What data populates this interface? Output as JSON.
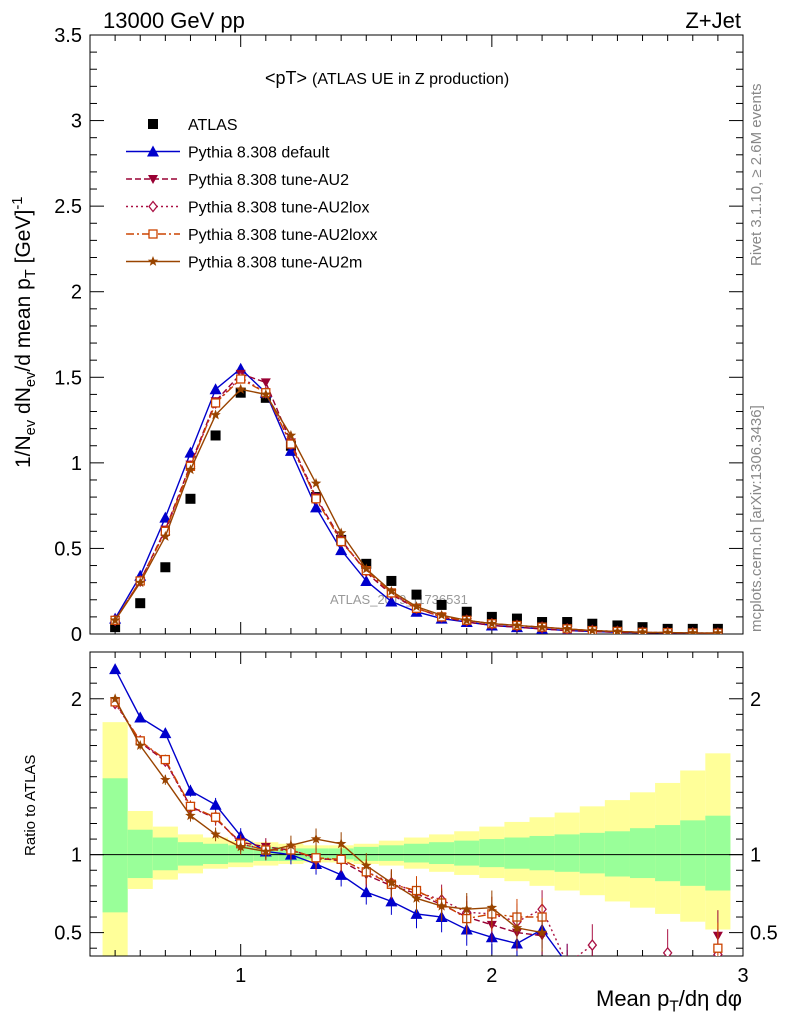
{
  "header": {
    "left": "13000 GeV pp",
    "right": "Z+Jet",
    "title_main": "<pT>",
    "title_sub": "(ATLAS UE in Z production)",
    "side_rivet": "Rivet 3.1.10, ≥ 2.6M events",
    "side_mcplots": "mcplots.cern.ch [arXiv:1306.3436]",
    "watermark": "ATLAS_2019_I1736531"
  },
  "axes": {
    "ylabel_top": "1/N_ev dN_ev/d mean p_T [GeV]^-1",
    "ylabel_bottom": "Ratio to ATLAS",
    "xlabel": "Mean p_T/dη dφ"
  },
  "chart_data": [
    {
      "type": "scatter",
      "panel": "main",
      "xlim": [
        0.4,
        3.0
      ],
      "ylim": [
        0,
        3.5
      ],
      "x_ticks": [
        1,
        2,
        3
      ],
      "y_ticks": [
        0,
        0.5,
        1,
        1.5,
        2,
        2.5,
        3,
        3.5
      ],
      "y_tick_labels": [
        "0",
        "0.5",
        "1",
        "1.5",
        "2",
        "2.5",
        "3",
        "3.5"
      ],
      "legend_position": "top-left",
      "x": [
        0.5,
        0.6,
        0.7,
        0.8,
        0.9,
        1.0,
        1.1,
        1.2,
        1.3,
        1.4,
        1.5,
        1.6,
        1.7,
        1.8,
        1.9,
        2.0,
        2.1,
        2.2,
        2.3,
        2.4,
        2.5,
        2.6,
        2.7,
        2.8,
        2.9
      ],
      "series": [
        {
          "name": "ATLAS",
          "color": "#000000",
          "marker": "square",
          "line": "none",
          "values": [
            0.04,
            0.18,
            0.39,
            0.79,
            1.16,
            1.41,
            1.38,
            1.1,
            0.8,
            0.55,
            0.41,
            0.31,
            0.23,
            0.17,
            0.13,
            0.1,
            0.09,
            0.07,
            0.07,
            0.06,
            0.05,
            0.04,
            0.03,
            0.03,
            0.03
          ]
        },
        {
          "name": "Pythia 8.308 default",
          "color": "#0000cc",
          "marker": "triangle-up",
          "line": "solid",
          "values": [
            0.09,
            0.34,
            0.68,
            1.06,
            1.43,
            1.55,
            1.41,
            1.07,
            0.74,
            0.49,
            0.31,
            0.19,
            0.13,
            0.09,
            0.07,
            0.05,
            0.04,
            0.03,
            0.02,
            0.015,
            0.01,
            0.008,
            0.006,
            0.005,
            0.004
          ]
        },
        {
          "name": "Pythia 8.308 tune-AU2",
          "color": "#990033",
          "marker": "triangle-down",
          "line": "dashed",
          "values": [
            0.08,
            0.31,
            0.61,
            0.99,
            1.36,
            1.52,
            1.47,
            1.12,
            0.8,
            0.55,
            0.36,
            0.23,
            0.15,
            0.1,
            0.07,
            0.05,
            0.04,
            0.03,
            0.02,
            0.015,
            0.01,
            0.008,
            0.006,
            0.005,
            0.004
          ]
        },
        {
          "name": "Pythia 8.308 tune-AU2lox",
          "color": "#aa1144",
          "marker": "diamond-open",
          "line": "dotted",
          "values": [
            0.08,
            0.31,
            0.6,
            0.98,
            1.35,
            1.5,
            1.41,
            1.11,
            0.79,
            0.54,
            0.37,
            0.24,
            0.15,
            0.1,
            0.08,
            0.06,
            0.05,
            0.04,
            0.03,
            0.02,
            0.015,
            0.01,
            0.008,
            0.006,
            0.005
          ]
        },
        {
          "name": "Pythia 8.308 tune-AU2loxx",
          "color": "#cc4400",
          "marker": "square-open",
          "line": "dashdot",
          "values": [
            0.08,
            0.31,
            0.6,
            0.98,
            1.35,
            1.49,
            1.41,
            1.11,
            0.79,
            0.54,
            0.37,
            0.24,
            0.15,
            0.1,
            0.08,
            0.06,
            0.05,
            0.04,
            0.03,
            0.02,
            0.015,
            0.01,
            0.008,
            0.006,
            0.005
          ]
        },
        {
          "name": "Pythia 8.308 tune-AU2m",
          "color": "#994400",
          "marker": "star",
          "line": "solid",
          "values": [
            0.08,
            0.3,
            0.57,
            0.96,
            1.28,
            1.43,
            1.4,
            1.16,
            0.88,
            0.59,
            0.38,
            0.25,
            0.16,
            0.11,
            0.08,
            0.06,
            0.05,
            0.04,
            0.03,
            0.02,
            0.015,
            0.01,
            0.008,
            0.006,
            0.005
          ]
        }
      ]
    },
    {
      "type": "line",
      "panel": "ratio",
      "xlim": [
        0.4,
        3.0
      ],
      "ylim": [
        0.35,
        2.3
      ],
      "x_ticks": [
        1,
        2,
        3
      ],
      "x_tick_labels": [
        "1",
        "2",
        "3"
      ],
      "y_ticks": [
        0.5,
        1,
        2
      ],
      "y_tick_labels": [
        "0.5",
        "1",
        "2"
      ],
      "bin_edges": [
        0.45,
        0.55,
        0.65,
        0.75,
        0.85,
        0.95,
        1.05,
        1.15,
        1.25,
        1.35,
        1.45,
        1.55,
        1.65,
        1.75,
        1.85,
        1.95,
        2.05,
        2.15,
        2.25,
        2.35,
        2.45,
        2.55,
        2.65,
        2.75,
        2.85,
        2.95
      ],
      "bands": {
        "green_low": [
          0.63,
          0.85,
          0.9,
          0.93,
          0.94,
          0.95,
          0.96,
          0.96,
          0.97,
          0.97,
          0.96,
          0.96,
          0.95,
          0.94,
          0.93,
          0.92,
          0.91,
          0.9,
          0.89,
          0.88,
          0.86,
          0.85,
          0.83,
          0.8,
          0.77
        ],
        "green_high": [
          1.49,
          1.16,
          1.11,
          1.08,
          1.07,
          1.06,
          1.05,
          1.04,
          1.04,
          1.04,
          1.05,
          1.06,
          1.07,
          1.08,
          1.09,
          1.1,
          1.11,
          1.12,
          1.13,
          1.14,
          1.15,
          1.17,
          1.19,
          1.22,
          1.25
        ],
        "yellow_low": [
          0.35,
          0.78,
          0.84,
          0.88,
          0.91,
          0.92,
          0.93,
          0.94,
          0.95,
          0.95,
          0.94,
          0.93,
          0.91,
          0.89,
          0.87,
          0.85,
          0.83,
          0.8,
          0.77,
          0.74,
          0.7,
          0.66,
          0.62,
          0.57,
          0.52
        ],
        "yellow_high": [
          1.85,
          1.28,
          1.18,
          1.13,
          1.11,
          1.09,
          1.08,
          1.07,
          1.06,
          1.06,
          1.07,
          1.09,
          1.11,
          1.13,
          1.15,
          1.18,
          1.21,
          1.24,
          1.27,
          1.31,
          1.35,
          1.4,
          1.46,
          1.54,
          1.65
        ]
      },
      "x": [
        0.5,
        0.6,
        0.7,
        0.8,
        0.9,
        1.0,
        1.1,
        1.2,
        1.3,
        1.4,
        1.5,
        1.6,
        1.7,
        1.8,
        1.9,
        2.0,
        2.1,
        2.2,
        2.3,
        2.4,
        2.5,
        2.6,
        2.7,
        2.8,
        2.9
      ],
      "series": [
        {
          "name": "Pythia 8.308 default",
          "color": "#0000cc",
          "marker": "triangle-up",
          "line": "solid",
          "values": [
            2.19,
            1.88,
            1.78,
            1.41,
            1.32,
            1.12,
            1.02,
            1.0,
            0.94,
            0.87,
            0.76,
            0.7,
            0.62,
            0.6,
            0.52,
            0.47,
            0.43,
            0.52,
            0.3,
            null,
            null,
            null,
            null,
            null,
            0.33
          ]
        },
        {
          "name": "Pythia 8.308 tune-AU2",
          "color": "#990033",
          "marker": "triangle-down",
          "line": "dashed",
          "values": [
            1.98,
            1.72,
            1.6,
            1.31,
            1.23,
            1.08,
            1.05,
            1.03,
            0.98,
            0.96,
            0.87,
            0.8,
            0.75,
            0.68,
            0.6,
            0.55,
            0.5,
            0.48,
            null,
            null,
            null,
            null,
            null,
            null,
            0.48
          ]
        },
        {
          "name": "Pythia 8.308 tune-AU2lox",
          "color": "#aa1144",
          "marker": "diamond-open",
          "line": "dotted",
          "values": [
            1.97,
            1.73,
            1.6,
            1.3,
            1.24,
            1.07,
            1.03,
            1.03,
            0.97,
            0.97,
            0.89,
            0.82,
            0.76,
            0.71,
            0.63,
            0.62,
            0.57,
            0.65,
            0.3,
            0.42,
            null,
            null,
            0.37,
            null,
            0.36
          ]
        },
        {
          "name": "Pythia 8.308 tune-AU2loxx",
          "color": "#cc4400",
          "marker": "square-open",
          "line": "dashdot",
          "values": [
            1.98,
            1.73,
            1.61,
            1.31,
            1.24,
            1.07,
            1.03,
            1.03,
            0.98,
            0.97,
            0.89,
            0.81,
            0.77,
            0.69,
            0.59,
            0.62,
            0.6,
            0.6,
            null,
            null,
            null,
            null,
            null,
            null,
            0.4
          ]
        },
        {
          "name": "Pythia 8.308 tune-AU2m",
          "color": "#994400",
          "marker": "star",
          "line": "solid",
          "values": [
            2.0,
            1.7,
            1.48,
            1.25,
            1.13,
            1.05,
            1.02,
            1.06,
            1.1,
            1.07,
            0.93,
            0.82,
            0.72,
            0.67,
            0.65,
            0.66,
            0.53,
            0.5,
            null,
            null,
            null,
            null,
            null,
            null,
            null
          ]
        }
      ]
    }
  ]
}
